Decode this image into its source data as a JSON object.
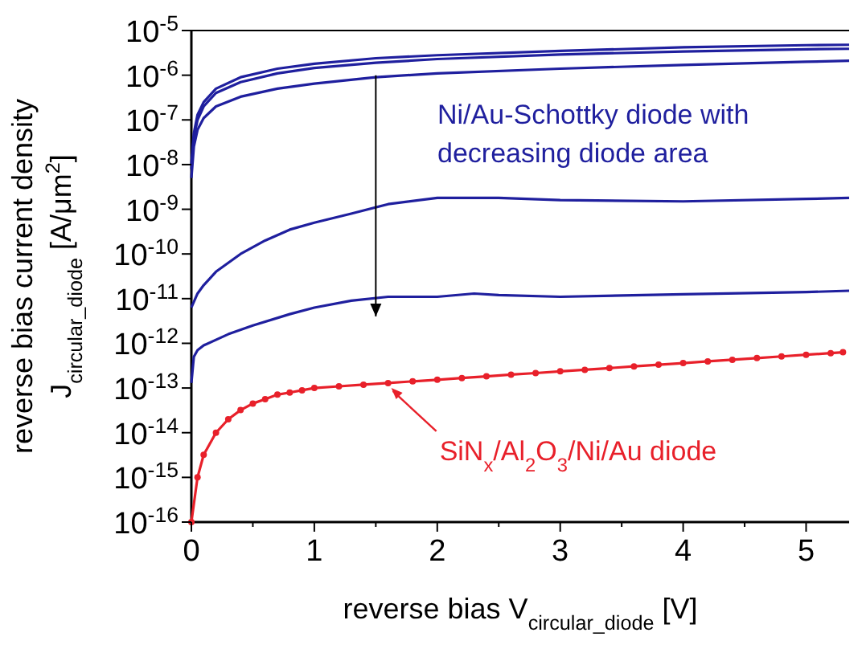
{
  "chart_data": {
    "type": "line",
    "xlabel": "reverse bias V$_{circular_diode}$ [V]",
    "ylabel": "reverse bias current density\nJ$_{circular_diode}$ [A/μm$^{2}$]",
    "log": true,
    "xlim": [
      0,
      5.35
    ],
    "ylim": [
      1e-16,
      1e-05
    ],
    "xticks": [
      0,
      {
        "value": 0.5,
        "label": null
      },
      1,
      {
        "value": 1.5,
        "label": null
      },
      2,
      {
        "value": 2.5,
        "label": null
      },
      3,
      {
        "value": 3.5,
        "label": null
      },
      4,
      {
        "value": 4.5,
        "label": null
      },
      5
    ],
    "yticks": [
      {
        "value": 1e-16,
        "label": "10$^{-16}$"
      },
      {
        "value": 1e-15,
        "label": "10$^{-15}$"
      },
      {
        "value": 1e-14,
        "label": "10$^{-14}$"
      },
      {
        "value": 1e-13,
        "label": "10$^{-13}$"
      },
      {
        "value": 1e-12,
        "label": "10$^{-12}$"
      },
      {
        "value": 1e-11,
        "label": "10$^{-11}$"
      },
      {
        "value": 1e-10,
        "label": "10$^{-10}$"
      },
      {
        "value": 1e-09,
        "label": "10$^{-9}$"
      },
      {
        "value": 1e-08,
        "label": "10$^{-8}$"
      },
      {
        "value": 1e-07,
        "label": "10$^{-7}$"
      },
      {
        "value": 1e-06,
        "label": "10$^{-6}$"
      },
      {
        "value": 1e-05,
        "label": "10$^{-5}$"
      }
    ],
    "grid": false,
    "line_style": "solid",
    "marker": "none",
    "series": [
      {
        "color": "#1f1f9e",
        "x": [
          0,
          0.02,
          0.05,
          0.1,
          0.2,
          0.4,
          0.7,
          1,
          1.5,
          2,
          3,
          4,
          5,
          5.35
        ],
        "values": [
          1e-08,
          5e-08,
          1.3e-07,
          2.5e-07,
          5e-07,
          9e-07,
          1.4e-06,
          1.8e-06,
          2.4e-06,
          2.8e-06,
          3.5e-06,
          4.2e-06,
          4.7e-06,
          4.8e-06
        ]
      },
      {
        "color": "#1f1f9e",
        "x": [
          0,
          0.02,
          0.05,
          0.1,
          0.2,
          0.4,
          0.7,
          1,
          1.5,
          2,
          3,
          4,
          5,
          5.35
        ],
        "values": [
          8e-09,
          4e-08,
          1e-07,
          2e-07,
          4e-07,
          7e-07,
          1.1e-06,
          1.45e-06,
          1.9e-06,
          2.3e-06,
          2.9e-06,
          3.4e-06,
          3.8e-06,
          3.9e-06
        ]
      },
      {
        "color": "#1f1f9e",
        "x": [
          0,
          0.02,
          0.05,
          0.1,
          0.2,
          0.4,
          0.7,
          1,
          1.5,
          2,
          3,
          4,
          5,
          5.35
        ],
        "values": [
          5e-09,
          2.5e-08,
          6e-08,
          1.1e-07,
          2e-07,
          3.3e-07,
          5e-07,
          6.5e-07,
          9e-07,
          1.1e-06,
          1.4e-06,
          1.7e-06,
          2e-06,
          2.1e-06
        ]
      },
      {
        "color": "#1f1f9e",
        "x": [
          0,
          0.05,
          0.1,
          0.2,
          0.4,
          0.6,
          0.8,
          1,
          1.3,
          1.6,
          2,
          2.5,
          3,
          4,
          5,
          5.35
        ],
        "values": [
          6.3e-12,
          1.3e-11,
          2e-11,
          4e-11,
          1e-10,
          2e-10,
          3.5e-10,
          5e-10,
          8e-10,
          1.3e-09,
          1.8e-09,
          1.8e-09,
          1.6e-09,
          1.5e-09,
          1.7e-09,
          1.8e-09
        ]
      },
      {
        "color": "#1f1f9e",
        "x": [
          0,
          0.02,
          0.05,
          0.1,
          0.3,
          0.5,
          0.8,
          1,
          1.3,
          1.6,
          2,
          2.3,
          2.5,
          3,
          4,
          5,
          5.35
        ],
        "values": [
          1.3e-13,
          5e-13,
          7e-13,
          9e-13,
          1.6e-12,
          2.5e-12,
          4.5e-12,
          6.3e-12,
          9e-12,
          1.1e-11,
          1.1e-11,
          1.3e-11,
          1.2e-11,
          1.1e-11,
          1.25e-11,
          1.4e-11,
          1.5e-11
        ]
      },
      {
        "color": "#e8202a",
        "marker": "circle",
        "x": [
          0,
          0.05,
          0.1,
          0.2,
          0.3,
          0.4,
          0.5,
          0.6,
          0.7,
          0.8,
          0.9,
          1,
          1.2,
          1.4,
          1.6,
          1.8,
          2,
          2.2,
          2.4,
          2.6,
          2.8,
          3,
          3.2,
          3.4,
          3.6,
          3.8,
          4,
          4.2,
          4.4,
          4.6,
          4.8,
          5,
          5.2,
          5.3
        ],
        "values": [
          1e-16,
          1e-15,
          3.2e-15,
          1e-14,
          2e-14,
          3.2e-14,
          4.5e-14,
          5.6e-14,
          7.1e-14,
          7.9e-14,
          8.9e-14,
          1e-13,
          1.09e-13,
          1.19e-13,
          1.29e-13,
          1.41e-13,
          1.53e-13,
          1.67e-13,
          1.82e-13,
          1.99e-13,
          2.16e-13,
          2.36e-13,
          2.56e-13,
          2.79e-13,
          3.05e-13,
          3.32e-13,
          3.61e-13,
          3.94e-13,
          4.29e-13,
          4.68e-13,
          5.09e-13,
          5.55e-13,
          6.04e-13,
          6.3e-13
        ]
      }
    ],
    "annotations": [
      "Ni/Au-Schottky diode with\ndecreasing diode area",
      {
        "text": "SiN$_{x}$/Al$_{2}$O$_{3}$/Ni/Au diode",
        "x": 1.6,
        "y": 1.29e-13
      }
    ]
  }
}
